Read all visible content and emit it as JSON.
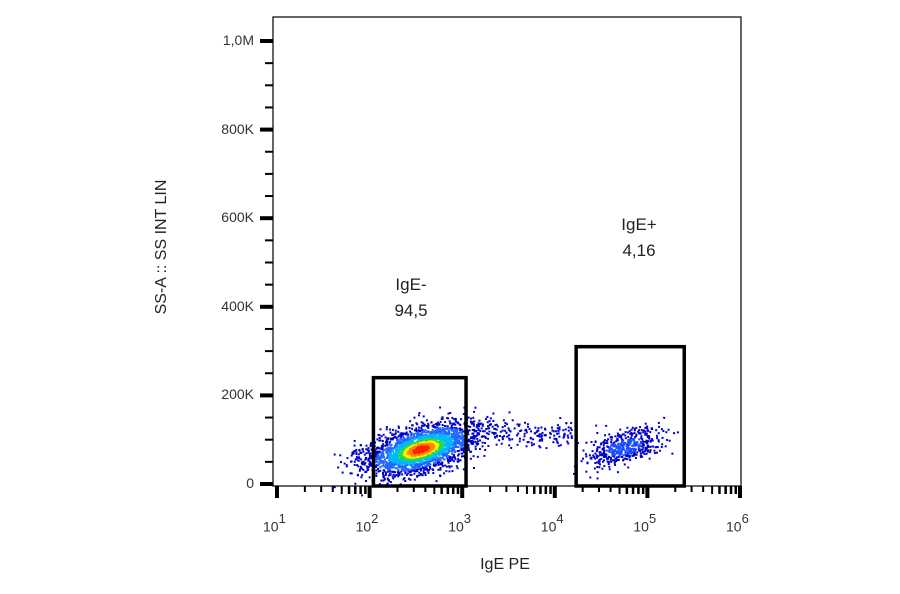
{
  "chart_data": {
    "type": "scatter",
    "subtype": "flow-cytometry-density-dot-plot",
    "title": "",
    "xlabel": "IgE PE",
    "ylabel": "SS-A :: SS INT LIN",
    "x_scale": "log",
    "x_range": [
      10,
      1000000
    ],
    "x_ticks": [
      {
        "base": "10",
        "exp": "1",
        "value": 10
      },
      {
        "base": "10",
        "exp": "2",
        "value": 100
      },
      {
        "base": "10",
        "exp": "3",
        "value": 1000
      },
      {
        "base": "10",
        "exp": "4",
        "value": 10000
      },
      {
        "base": "10",
        "exp": "5",
        "value": 100000
      },
      {
        "base": "10",
        "exp": "6",
        "value": 1000000
      }
    ],
    "y_scale": "linear",
    "y_range": [
      0,
      1050000
    ],
    "y_ticks": [
      {
        "label": "0",
        "value": 0
      },
      {
        "label": "200K",
        "value": 200000
      },
      {
        "label": "400K",
        "value": 400000
      },
      {
        "label": "600K",
        "value": 600000
      },
      {
        "label": "800K",
        "value": 800000
      },
      {
        "label": "1,0M",
        "value": 1000000
      }
    ],
    "grid": false,
    "gates": [
      {
        "name": "IgE-",
        "percent": "94,5",
        "x_min": 110,
        "x_max": 1100,
        "y_min": 0,
        "y_max": 240000
      },
      {
        "name": "IgE+",
        "percent": "4,16",
        "x_min": 17000,
        "x_max": 250000,
        "y_min": 0,
        "y_max": 310000
      }
    ],
    "populations": [
      {
        "name": "IgE- main cluster",
        "center_x": 350,
        "center_y": 80000,
        "spread_log_x": 0.35,
        "spread_y": 25000,
        "density": "high",
        "colormap": "blue-green-yellow-red"
      },
      {
        "name": "intermediate scatter",
        "x_from": 1300,
        "x_to": 15000,
        "center_y": 115000,
        "density": "low"
      },
      {
        "name": "IgE+ cluster",
        "center_x": 55000,
        "center_y": 85000,
        "spread_log_x": 0.25,
        "spread_y": 18000,
        "density": "medium"
      }
    ]
  },
  "colors": {
    "axis": "#000000",
    "gate_border": "#000000",
    "low_density": "#0000cc",
    "mid_density": "#00b8ff",
    "green": "#22dd44",
    "yellow": "#ffee00",
    "high_density": "#ff2200"
  }
}
